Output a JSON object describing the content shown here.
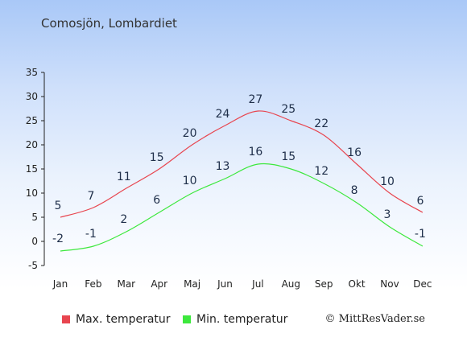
{
  "title": "Comosjön, Lombardiet",
  "credit": "© MittResVader.se",
  "chart_data": {
    "type": "line",
    "categories": [
      "Jan",
      "Feb",
      "Mar",
      "Apr",
      "Maj",
      "Jun",
      "Jul",
      "Aug",
      "Sep",
      "Okt",
      "Nov",
      "Dec"
    ],
    "series": [
      {
        "name": "Max. temperatur",
        "color": "#e8454f",
        "values": [
          5,
          7,
          11,
          15,
          20,
          24,
          27,
          25,
          22,
          16,
          10,
          6
        ]
      },
      {
        "name": "Min. temperatur",
        "color": "#3de83d",
        "values": [
          -2,
          -1,
          2,
          6,
          10,
          13,
          16,
          15,
          12,
          8,
          3,
          -1
        ]
      }
    ],
    "ylim": [
      -5,
      35
    ],
    "yticks": [
      -5,
      0,
      5,
      10,
      15,
      20,
      25,
      30,
      35
    ],
    "grid": false,
    "legend": "bottom"
  }
}
